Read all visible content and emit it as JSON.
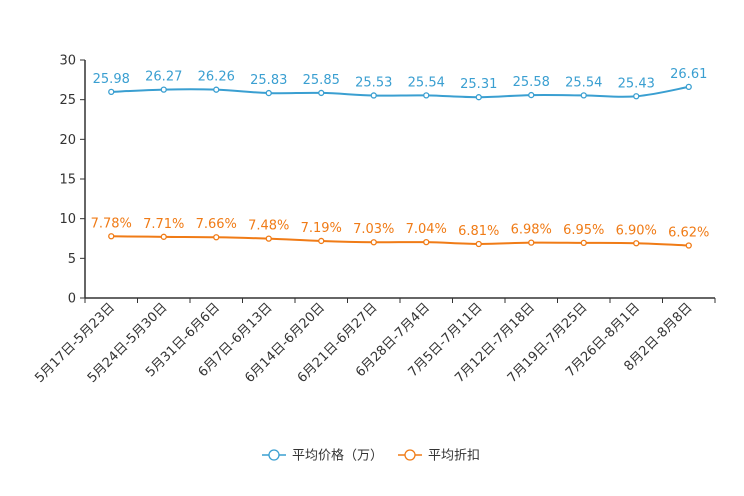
{
  "chart_data": {
    "type": "line",
    "title": "",
    "xlabel": "",
    "ylabel": "",
    "ylim": [
      0,
      30
    ],
    "yticks": [
      0,
      5,
      10,
      15,
      20,
      25,
      30
    ],
    "grid": false,
    "legend_position": "bottom-center",
    "categories": [
      "5月17日-5月23日",
      "5月24日-5月30日",
      "5月31日-6月6日",
      "6月7日-6月13日",
      "6月14日-6月20日",
      "6月21日-6月27日",
      "6月28日-7月4日",
      "7月5日-7月11日",
      "7月12日-7月18日",
      "7月19日-7月25日",
      "7月26日-8月1日",
      "8月2日-8月8日"
    ],
    "series": [
      {
        "name": "平均价格（万）",
        "color": "#3a9fd1",
        "values": [
          25.98,
          26.27,
          26.26,
          25.83,
          25.85,
          25.53,
          25.54,
          25.31,
          25.58,
          25.54,
          25.43,
          26.61
        ],
        "labels": [
          "25.98",
          "26.27",
          "26.26",
          "25.83",
          "25.85",
          "25.53",
          "25.54",
          "25.31",
          "25.58",
          "25.54",
          "25.43",
          "26.61"
        ]
      },
      {
        "name": "平均折扣",
        "color": "#f07b16",
        "values": [
          7.78,
          7.71,
          7.66,
          7.48,
          7.19,
          7.03,
          7.04,
          6.81,
          6.98,
          6.95,
          6.9,
          6.62
        ],
        "labels": [
          "7.78%",
          "7.71%",
          "7.66%",
          "7.48%",
          "7.19%",
          "7.03%",
          "7.04%",
          "6.81%",
          "6.98%",
          "6.95%",
          "6.90%",
          "6.62%"
        ]
      }
    ]
  }
}
